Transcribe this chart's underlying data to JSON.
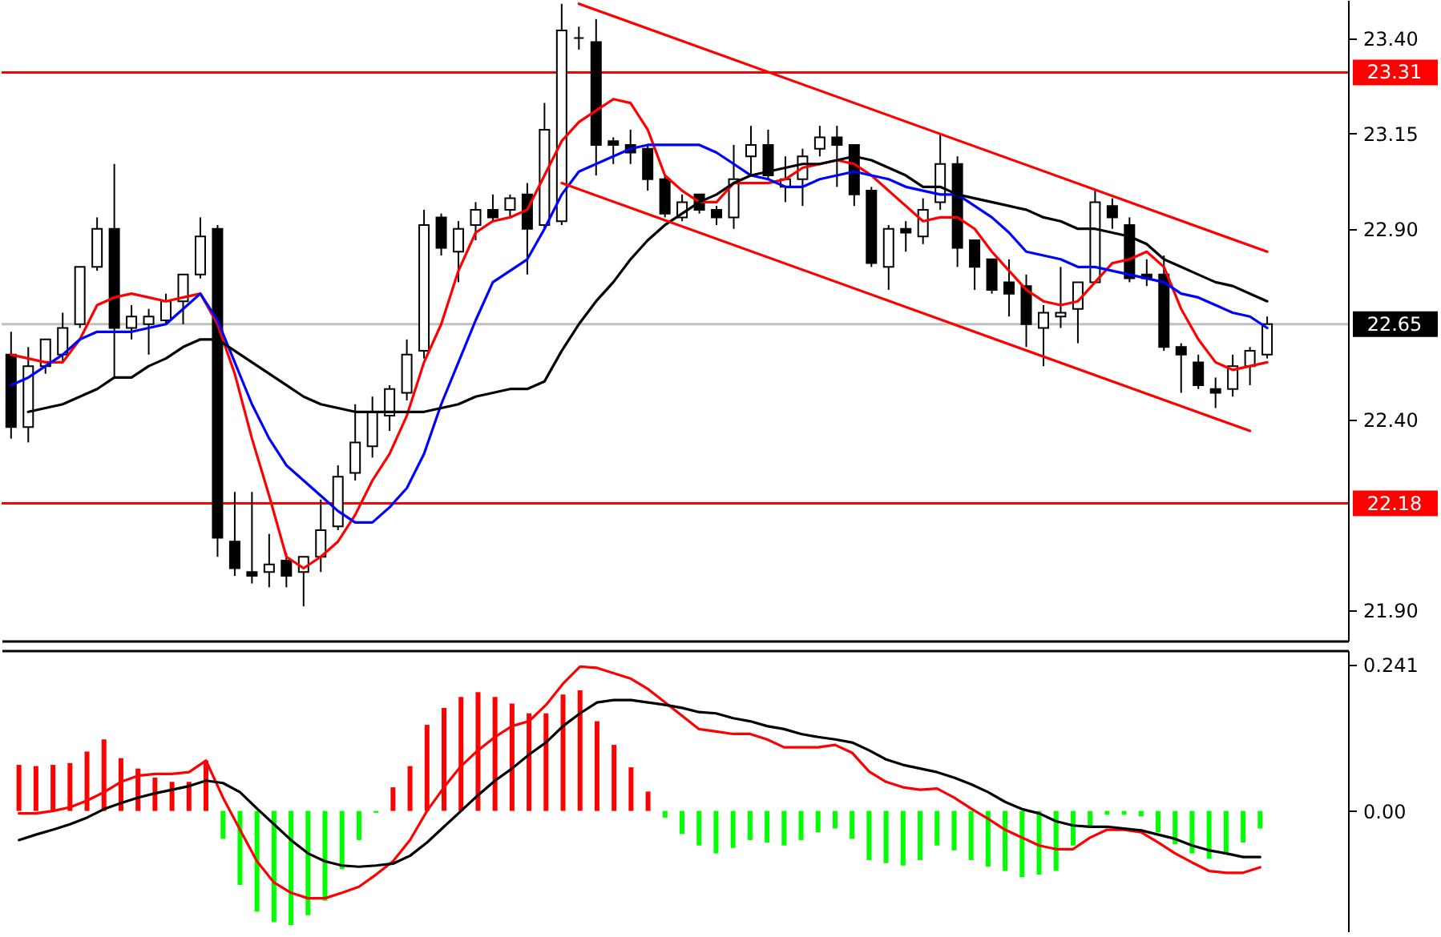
{
  "chart_data": [
    {
      "type": "candlestick",
      "categories": [
        null,
        null,
        null,
        null,
        null,
        null,
        null,
        null,
        null,
        null,
        null,
        null,
        null,
        null,
        null,
        null,
        null,
        null,
        null,
        null,
        null,
        null,
        null,
        null,
        null,
        null,
        null,
        null,
        null,
        null,
        null,
        null,
        null,
        null,
        null,
        null,
        null,
        null,
        null,
        null,
        null,
        null,
        null,
        null,
        null,
        null,
        null,
        null,
        null,
        null,
        null,
        null,
        null,
        null,
        null,
        null,
        null,
        null,
        null,
        null,
        null,
        null,
        null,
        null,
        null,
        null,
        null,
        null,
        null,
        null,
        null,
        null,
        null,
        null
      ],
      "ohlc": [
        [
          22.57,
          22.63,
          22.35,
          22.38
        ],
        [
          22.38,
          22.59,
          22.34,
          22.54
        ],
        [
          22.54,
          22.61,
          22.52,
          22.61
        ],
        [
          22.57,
          22.68,
          22.55,
          22.64
        ],
        [
          22.65,
          22.8,
          22.64,
          22.8
        ],
        [
          22.8,
          22.93,
          22.79,
          22.9
        ],
        [
          22.9,
          23.07,
          22.51,
          22.64
        ],
        [
          22.64,
          22.7,
          22.61,
          22.67
        ],
        [
          22.65,
          22.69,
          22.57,
          22.67
        ],
        [
          22.66,
          22.73,
          22.65,
          22.71
        ],
        [
          22.71,
          22.78,
          22.65,
          22.78
        ],
        [
          22.78,
          22.93,
          22.77,
          22.88
        ],
        [
          22.9,
          22.91,
          22.04,
          22.09
        ],
        [
          22.08,
          22.21,
          21.99,
          22.01
        ],
        [
          22.0,
          22.21,
          21.97,
          21.99
        ],
        [
          22.0,
          22.1,
          21.96,
          22.02
        ],
        [
          22.03,
          22.05,
          21.96,
          21.99
        ],
        [
          22.0,
          22.04,
          21.91,
          22.04
        ],
        [
          22.04,
          22.19,
          22.0,
          22.11
        ],
        [
          22.12,
          22.28,
          22.11,
          22.25
        ],
        [
          22.26,
          22.44,
          22.24,
          22.34
        ],
        [
          22.33,
          22.46,
          22.3,
          22.42
        ],
        [
          22.41,
          22.49,
          22.37,
          22.48
        ],
        [
          22.47,
          22.61,
          22.45,
          22.57
        ],
        [
          22.58,
          22.95,
          22.56,
          22.91
        ],
        [
          22.93,
          22.94,
          22.83,
          22.85
        ],
        [
          22.84,
          22.92,
          22.76,
          22.9
        ],
        [
          22.91,
          22.97,
          22.87,
          22.95
        ],
        [
          22.95,
          22.99,
          22.92,
          22.93
        ],
        [
          22.95,
          22.99,
          22.93,
          22.98
        ],
        [
          22.99,
          23.02,
          22.78,
          22.9
        ],
        [
          22.91,
          23.23,
          22.9,
          23.16
        ],
        [
          22.92,
          23.49,
          22.91,
          23.42
        ],
        [
          23.4,
          23.43,
          23.37,
          23.4
        ],
        [
          23.39,
          23.45,
          23.04,
          23.12
        ],
        [
          23.13,
          23.14,
          23.07,
          23.12
        ],
        [
          23.12,
          23.16,
          23.07,
          23.1
        ],
        [
          23.11,
          23.12,
          23.0,
          23.03
        ],
        [
          23.03,
          23.04,
          22.93,
          22.94
        ],
        [
          22.93,
          22.99,
          22.92,
          22.97
        ],
        [
          22.99,
          22.99,
          22.94,
          22.95
        ],
        [
          22.95,
          22.96,
          22.91,
          22.93
        ],
        [
          22.93,
          23.12,
          22.9,
          23.03
        ],
        [
          23.09,
          23.17,
          23.04,
          23.12
        ],
        [
          23.12,
          23.16,
          23.03,
          23.04
        ],
        [
          23.01,
          23.09,
          22.97,
          23.03
        ],
        [
          23.03,
          23.11,
          22.96,
          23.09
        ],
        [
          23.11,
          23.17,
          23.09,
          23.14
        ],
        [
          23.14,
          23.17,
          23.01,
          23.12
        ],
        [
          23.12,
          23.12,
          22.96,
          22.99
        ],
        [
          23.0,
          23.01,
          22.8,
          22.81
        ],
        [
          22.8,
          22.91,
          22.74,
          22.9
        ],
        [
          22.9,
          22.92,
          22.84,
          22.89
        ],
        [
          22.88,
          22.98,
          22.86,
          22.95
        ],
        [
          22.97,
          23.15,
          22.95,
          23.07
        ],
        [
          23.07,
          23.09,
          22.8,
          22.85
        ],
        [
          22.87,
          22.87,
          22.74,
          22.8
        ],
        [
          22.82,
          22.82,
          22.73,
          22.74
        ],
        [
          22.76,
          22.82,
          22.67,
          22.73
        ],
        [
          22.75,
          22.78,
          22.59,
          22.65
        ],
        [
          22.64,
          22.7,
          22.54,
          22.68
        ],
        [
          22.67,
          22.8,
          22.64,
          22.68
        ],
        [
          22.69,
          22.76,
          22.6,
          22.76
        ],
        [
          22.76,
          23.0,
          22.76,
          22.97
        ],
        [
          22.96,
          22.98,
          22.9,
          22.93
        ],
        [
          22.91,
          22.93,
          22.76,
          22.77
        ],
        [
          22.78,
          22.82,
          22.75,
          22.77
        ],
        [
          22.78,
          22.83,
          22.58,
          22.59
        ],
        [
          22.59,
          22.6,
          22.47,
          22.57
        ],
        [
          22.55,
          22.57,
          22.48,
          22.49
        ],
        [
          22.48,
          22.51,
          22.43,
          22.47
        ],
        [
          22.48,
          22.57,
          22.46,
          22.54
        ],
        [
          22.54,
          22.59,
          22.49,
          22.58
        ],
        [
          22.57,
          22.67,
          22.56,
          22.65
        ]
      ],
      "series": [
        {
          "type": "line",
          "color": "#ff0000",
          "values": [
            22.57,
            22.56,
            22.55,
            22.55,
            22.61,
            22.7,
            22.72,
            22.73,
            22.72,
            22.71,
            22.72,
            22.73,
            22.65,
            22.52,
            22.35,
            22.2,
            22.04,
            22.01,
            22.04,
            22.08,
            22.15,
            22.24,
            22.31,
            22.41,
            22.55,
            22.65,
            22.79,
            22.89,
            22.92,
            22.93,
            22.95,
            23.04,
            23.13,
            23.18,
            23.21,
            23.24,
            23.23,
            23.16,
            23.04,
            23.0,
            22.97,
            22.97,
            23.02,
            23.02,
            23.02,
            23.03,
            23.06,
            23.07,
            23.08,
            23.07,
            23.04,
            23.0,
            22.96,
            22.92,
            22.93,
            22.93,
            22.9,
            22.84,
            22.79,
            22.74,
            22.71,
            22.7,
            22.71,
            22.76,
            22.81,
            22.82,
            22.84,
            22.8,
            22.69,
            22.61,
            22.55,
            22.53,
            22.54,
            22.55
          ]
        },
        {
          "type": "line",
          "color": "#0000ff",
          "values": [
            22.49,
            22.51,
            22.54,
            22.57,
            22.61,
            22.63,
            22.63,
            22.63,
            22.64,
            22.65,
            22.69,
            22.73,
            22.66,
            22.55,
            22.44,
            22.35,
            22.28,
            22.24,
            22.2,
            22.16,
            22.13,
            22.13,
            22.17,
            22.22,
            22.31,
            22.44,
            22.55,
            22.66,
            22.76,
            22.79,
            22.82,
            22.9,
            22.99,
            23.05,
            23.07,
            23.09,
            23.11,
            23.12,
            23.12,
            23.12,
            23.12,
            23.1,
            23.07,
            23.04,
            23.03,
            23.01,
            23.01,
            23.03,
            23.04,
            23.05,
            23.04,
            23.03,
            23.01,
            23.0,
            22.99,
            22.99,
            22.96,
            22.93,
            22.89,
            22.84,
            22.83,
            22.82,
            22.8,
            22.8,
            22.79,
            22.78,
            22.77,
            22.76,
            22.73,
            22.72,
            22.7,
            22.68,
            22.67,
            22.64
          ]
        },
        {
          "type": "line",
          "color": "#000000",
          "values": [
            null,
            22.42,
            22.43,
            22.44,
            22.46,
            22.48,
            22.51,
            22.51,
            22.54,
            22.56,
            22.59,
            22.61,
            22.61,
            22.58,
            22.55,
            22.52,
            22.49,
            22.46,
            22.44,
            22.43,
            22.42,
            22.42,
            22.42,
            22.42,
            22.42,
            22.43,
            22.44,
            22.46,
            22.47,
            22.48,
            22.48,
            22.5,
            22.58,
            22.65,
            22.71,
            22.76,
            22.82,
            22.87,
            22.91,
            22.94,
            22.97,
            22.99,
            23.02,
            23.04,
            23.05,
            23.06,
            23.07,
            23.07,
            23.08,
            23.09,
            23.08,
            23.06,
            23.04,
            23.01,
            23.01,
            22.99,
            22.98,
            22.97,
            22.96,
            22.95,
            22.93,
            22.92,
            22.9,
            22.9,
            22.89,
            22.88,
            22.86,
            22.82,
            22.8,
            22.78,
            22.76,
            22.75,
            22.73,
            22.71
          ]
        },
        {
          "type": "line",
          "color": "#ff0000",
          "values": [
            null,
            null,
            null,
            null,
            null,
            null,
            null,
            null,
            null,
            null,
            null,
            null,
            null,
            null,
            null,
            null,
            null,
            null,
            null,
            null,
            null,
            null,
            null,
            null,
            null,
            null,
            null,
            null,
            null,
            null,
            null,
            null,
            null,
            23.49,
            null,
            null,
            null,
            null,
            null,
            null,
            null,
            null,
            null,
            null,
            null,
            null,
            null,
            null,
            null,
            null,
            null,
            null,
            null,
            null,
            null,
            null,
            null,
            null,
            null,
            null,
            null,
            null,
            null,
            null,
            null,
            null,
            null,
            null,
            null,
            null,
            null,
            null,
            null,
            22.84
          ]
        },
        {
          "type": "line",
          "color": "#ff0000",
          "values": [
            null,
            null,
            null,
            null,
            null,
            null,
            null,
            null,
            null,
            null,
            null,
            null,
            null,
            null,
            null,
            null,
            null,
            null,
            null,
            null,
            null,
            null,
            null,
            null,
            null,
            null,
            null,
            null,
            null,
            null,
            null,
            null,
            23.02,
            null,
            null,
            null,
            null,
            null,
            null,
            null,
            null,
            null,
            null,
            null,
            null,
            null,
            null,
            null,
            null,
            null,
            null,
            null,
            null,
            null,
            null,
            null,
            null,
            null,
            null,
            null,
            null,
            null,
            null,
            null,
            null,
            null,
            null,
            null,
            null,
            null,
            null,
            null,
            22.37,
            null
          ]
        }
      ],
      "ref_lines": [
        {
          "axis": "y",
          "value": 23.31,
          "label": "23.31",
          "color": "#ff0000"
        },
        {
          "axis": "y",
          "value": 22.18,
          "label": "22.18",
          "color": "#ff0000"
        },
        {
          "axis": "y",
          "value": 22.65,
          "label": "22.65",
          "color": "#c0c0c0"
        }
      ],
      "ylim": [
        21.82,
        23.5
      ],
      "yticks": [
        {
          "value": 21.9,
          "label": "21.90"
        },
        {
          "value": 22.4,
          "label": "22.40"
        },
        {
          "value": 22.9,
          "label": "22.90"
        },
        23.15,
        {
          "value": 23.4,
          "label": "23.40"
        }
      ],
      "tick_labels": "y"
    },
    {
      "type": "bar",
      "categories": [
        null,
        null,
        null,
        null,
        null,
        null,
        null,
        null,
        null,
        null,
        null,
        null,
        null,
        null,
        null,
        null,
        null,
        null,
        null,
        null,
        null,
        null,
        null,
        null,
        null,
        null,
        null,
        null,
        null,
        null,
        null,
        null,
        null,
        null,
        null,
        null,
        null,
        null,
        null,
        null,
        null,
        null,
        null,
        null,
        null,
        null,
        null,
        null,
        null,
        null,
        null,
        null,
        null,
        null,
        null,
        null,
        null,
        null,
        null,
        null,
        null,
        null,
        null,
        null,
        null,
        null,
        null,
        null,
        null,
        null,
        null,
        null,
        null,
        null
      ],
      "series": [
        {
          "color": "#ff0000",
          "values": [
            0.076,
            0.074,
            0.076,
            0.079,
            0.098,
            0.118,
            0.087,
            0.07,
            0.055,
            0.048,
            0.048,
            0.083,
            null,
            null,
            null,
            null,
            null,
            null,
            null,
            null,
            null,
            null,
            0.039,
            0.074,
            0.142,
            0.17,
            0.188,
            0.196,
            0.188,
            0.177,
            0.161,
            0.161,
            0.192,
            0.199,
            0.148,
            0.109,
            0.072,
            0.032,
            null,
            null,
            null,
            null,
            null,
            null,
            null,
            null,
            null,
            null,
            null,
            null,
            null,
            null,
            null,
            null,
            null,
            null,
            null,
            null,
            null,
            null,
            null,
            null,
            null,
            null,
            null,
            null,
            null,
            null,
            null,
            null,
            null,
            null,
            null,
            null
          ]
        },
        {
          "color": "#00ff00",
          "values": [
            null,
            null,
            null,
            null,
            null,
            null,
            null,
            null,
            null,
            null,
            null,
            null,
            -0.046,
            -0.122,
            -0.166,
            -0.183,
            -0.188,
            -0.172,
            -0.148,
            -0.096,
            -0.048,
            -0.003,
            null,
            null,
            null,
            null,
            null,
            null,
            null,
            null,
            null,
            null,
            null,
            null,
            null,
            null,
            null,
            null,
            -0.011,
            -0.038,
            -0.057,
            -0.07,
            -0.061,
            -0.048,
            -0.052,
            -0.057,
            -0.048,
            -0.035,
            -0.029,
            -0.046,
            -0.081,
            -0.086,
            -0.09,
            -0.081,
            -0.057,
            -0.065,
            -0.081,
            -0.092,
            -0.099,
            -0.109,
            -0.105,
            -0.099,
            -0.057,
            -0.026,
            -0.006,
            -0.006,
            -0.009,
            -0.035,
            -0.055,
            -0.07,
            -0.079,
            -0.072,
            -0.052,
            -0.029
          ]
        },
        {
          "type": "line",
          "color": "#ff0000",
          "values": [
            -0.004,
            -0.004,
            0,
            0.006,
            0.017,
            0.031,
            0.048,
            0.058,
            0.061,
            0.061,
            0.064,
            0.083,
            0.022,
            -0.031,
            -0.083,
            -0.118,
            -0.135,
            -0.144,
            -0.144,
            -0.135,
            -0.125,
            -0.105,
            -0.083,
            -0.048,
            0,
            0.039,
            0.074,
            0.1,
            0.122,
            0.14,
            0.148,
            0.175,
            0.21,
            0.238,
            0.236,
            0.227,
            0.218,
            0.201,
            0.179,
            0.157,
            0.135,
            0.131,
            0.127,
            0.127,
            0.118,
            0.105,
            0.105,
            0.105,
            0.109,
            0.096,
            0.065,
            0.048,
            0.039,
            0.035,
            0.037,
            0.022,
            0.004,
            -0.013,
            -0.031,
            -0.044,
            -0.057,
            -0.063,
            -0.063,
            -0.044,
            -0.031,
            -0.031,
            -0.035,
            -0.052,
            -0.07,
            -0.085,
            -0.099,
            -0.102,
            -0.102,
            -0.093
          ]
        },
        {
          "type": "line",
          "color": "#000000",
          "values": [
            -0.048,
            -0.039,
            -0.031,
            -0.022,
            -0.011,
            0.003,
            0.013,
            0.022,
            0.029,
            0.035,
            0.041,
            0.05,
            0.046,
            0.031,
            0.004,
            -0.022,
            -0.048,
            -0.07,
            -0.083,
            -0.09,
            -0.092,
            -0.09,
            -0.087,
            -0.074,
            -0.052,
            -0.026,
            0,
            0.026,
            0.05,
            0.07,
            0.093,
            0.113,
            0.14,
            0.161,
            0.179,
            0.183,
            0.183,
            0.179,
            0.175,
            0.17,
            0.163,
            0.161,
            0.153,
            0.148,
            0.14,
            0.135,
            0.127,
            0.122,
            0.118,
            0.113,
            0.1,
            0.085,
            0.076,
            0.07,
            0.064,
            0.055,
            0.044,
            0.031,
            0.015,
            0.003,
            -0.004,
            -0.017,
            -0.024,
            -0.026,
            -0.026,
            -0.029,
            -0.032,
            -0.039,
            -0.046,
            -0.057,
            -0.065,
            -0.07,
            -0.076,
            -0.076
          ]
        }
      ],
      "ylim": [
        -0.2,
        0.265
      ],
      "yticks": [
        {
          "value": 0,
          "label": "0.00"
        },
        0.241
      ],
      "tick_labels": "y"
    }
  ]
}
